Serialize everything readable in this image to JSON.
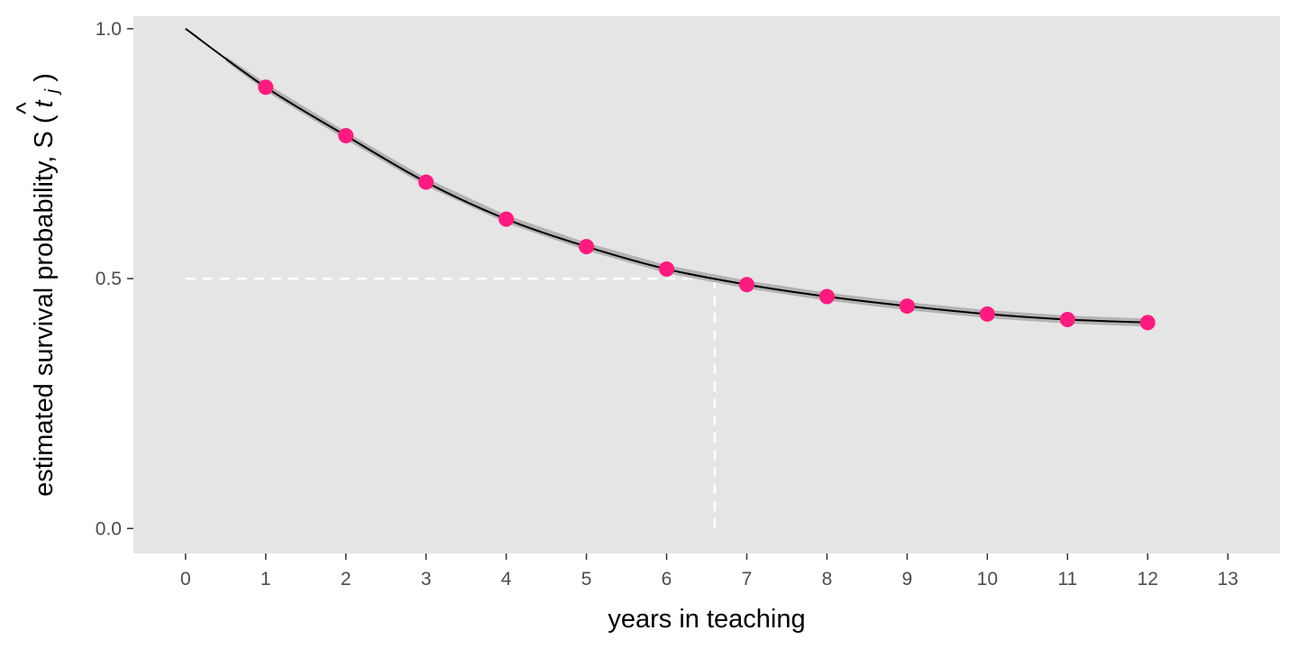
{
  "chart_data": {
    "type": "line",
    "title": "",
    "xlabel": "years in teaching",
    "ylabel": "estimated survival probability,",
    "ylabel_math": {
      "prefix": "S",
      "hat": "^",
      "open": "(",
      "var": "t",
      "sub": "j",
      "close": ")"
    },
    "xlim": [
      -0.65,
      13.65
    ],
    "ylim": [
      -0.05,
      1.025
    ],
    "x_ticks": [
      "0",
      "1",
      "2",
      "3",
      "4",
      "5",
      "6",
      "7",
      "8",
      "9",
      "10",
      "11",
      "12",
      "13"
    ],
    "y_ticks": [
      "0.0",
      "0.5",
      "1.0"
    ],
    "grid": false,
    "background": "#e5e5e5",
    "median_lines": {
      "x": 6.6,
      "y": 0.5,
      "color": "#ffffff",
      "style": "dashed"
    },
    "series": [
      {
        "kind": "curve",
        "color": "#000000",
        "x": [
          0,
          1,
          2,
          3,
          4,
          5,
          6,
          7,
          8,
          9,
          10,
          11,
          12
        ],
        "y": [
          1.0,
          0.883,
          0.786,
          0.693,
          0.619,
          0.564,
          0.519,
          0.488,
          0.464,
          0.445,
          0.429,
          0.418,
          0.412
        ]
      },
      {
        "kind": "band",
        "color": "#b3b3b3",
        "x": [
          0.5,
          1,
          2,
          3,
          4,
          5,
          6,
          7,
          8,
          9,
          10,
          11,
          12
        ],
        "lower": [
          0.935,
          0.875,
          0.778,
          0.685,
          0.611,
          0.556,
          0.511,
          0.48,
          0.456,
          0.437,
          0.421,
          0.41,
          0.404
        ],
        "upper": [
          0.945,
          0.891,
          0.794,
          0.701,
          0.627,
          0.572,
          0.527,
          0.496,
          0.472,
          0.453,
          0.437,
          0.426,
          0.42
        ]
      },
      {
        "kind": "points",
        "color": "#ff1a80",
        "x": [
          1,
          2,
          3,
          4,
          5,
          6,
          7,
          8,
          9,
          10,
          11,
          12
        ],
        "y": [
          0.883,
          0.786,
          0.693,
          0.619,
          0.564,
          0.519,
          0.488,
          0.464,
          0.445,
          0.429,
          0.418,
          0.412
        ]
      }
    ]
  }
}
